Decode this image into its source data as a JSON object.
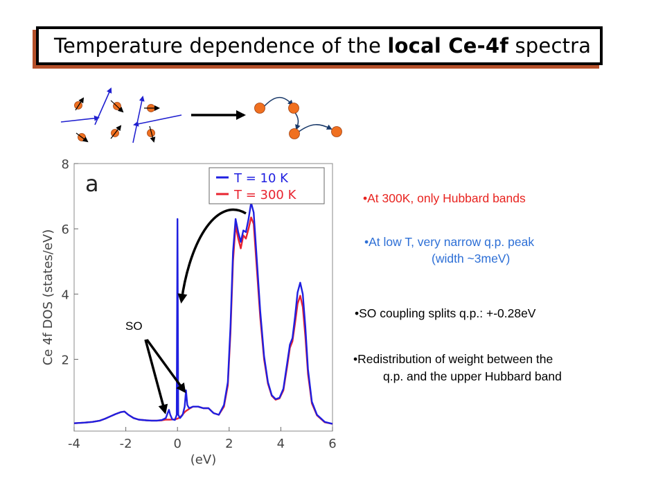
{
  "slide": {
    "title_prefix": "Temperature dependence of the ",
    "title_bold": "local Ce-4f",
    "title_suffix": " spectra",
    "bullets": [
      {
        "line1": "•At 300K, only Hubbard bands",
        "color": "#e8231f"
      },
      {
        "line1": "•At low T, very narrow q.p. peak",
        "line2": "(width ~3meV)",
        "color": "#2d6fd6"
      },
      {
        "line1": "•SO coupling splits q.p.: +-0.28eV",
        "color": "#000000"
      },
      {
        "line1": "•Redistribution of weight between the",
        "line2": "q.p. and the upper Hubbard band",
        "color": "#000000"
      }
    ]
  },
  "chart_data": {
    "type": "line",
    "panel_label": "a",
    "ylabel": "Ce 4f DOS (states/eV)",
    "xlabel": "(eV)",
    "xlim": [
      -4,
      6
    ],
    "ylim": [
      -0.2,
      8
    ],
    "xticks": [
      "-4",
      "-2",
      "0",
      "2",
      "4",
      "6"
    ],
    "yticks": [
      "2",
      "4",
      "6",
      "8"
    ],
    "annotation": "SO",
    "legend_position": "top-right",
    "series": [
      {
        "name": "T = 10 K",
        "color": "#1f1fe0",
        "x": [
          -4.0,
          -3.6,
          -3.3,
          -3.0,
          -2.8,
          -2.6,
          -2.4,
          -2.2,
          -2.05,
          -1.9,
          -1.7,
          -1.5,
          -1.2,
          -1.0,
          -0.8,
          -0.6,
          -0.45,
          -0.38,
          -0.33,
          -0.28,
          -0.2,
          -0.1,
          -0.03,
          0.0,
          0.03,
          0.1,
          0.2,
          0.28,
          0.33,
          0.38,
          0.45,
          0.6,
          0.8,
          1.0,
          1.2,
          1.4,
          1.6,
          1.8,
          1.95,
          2.05,
          2.15,
          2.25,
          2.35,
          2.45,
          2.55,
          2.65,
          2.75,
          2.85,
          2.95,
          3.05,
          3.2,
          3.35,
          3.5,
          3.65,
          3.8,
          3.95,
          4.1,
          4.25,
          4.35,
          4.45,
          4.55,
          4.65,
          4.75,
          4.85,
          4.95,
          5.05,
          5.2,
          5.4,
          5.7,
          6.0
        ],
        "y": [
          0.04,
          0.06,
          0.08,
          0.12,
          0.18,
          0.25,
          0.32,
          0.38,
          0.4,
          0.3,
          0.2,
          0.15,
          0.13,
          0.12,
          0.12,
          0.14,
          0.2,
          0.35,
          0.45,
          0.3,
          0.16,
          0.14,
          0.3,
          6.3,
          0.3,
          0.2,
          0.3,
          0.55,
          1.05,
          0.6,
          0.5,
          0.55,
          0.55,
          0.5,
          0.5,
          0.35,
          0.3,
          0.6,
          1.3,
          3.0,
          5.3,
          6.3,
          5.9,
          5.6,
          5.95,
          5.9,
          6.3,
          6.8,
          6.5,
          5.3,
          3.5,
          2.1,
          1.3,
          0.9,
          0.78,
          0.82,
          1.1,
          1.9,
          2.45,
          2.65,
          3.3,
          4.05,
          4.35,
          4.0,
          3.0,
          1.7,
          0.7,
          0.3,
          0.08,
          0.02
        ]
      },
      {
        "name": "T = 300 K",
        "color": "#e8232f",
        "x": [
          -4.0,
          -3.6,
          -3.3,
          -3.0,
          -2.8,
          -2.6,
          -2.4,
          -2.2,
          -2.05,
          -1.9,
          -1.7,
          -1.5,
          -1.2,
          -1.0,
          -0.8,
          -0.6,
          -0.45,
          -0.3,
          -0.1,
          0.0,
          0.1,
          0.3,
          0.45,
          0.6,
          0.8,
          1.0,
          1.2,
          1.4,
          1.6,
          1.8,
          1.95,
          2.05,
          2.15,
          2.25,
          2.35,
          2.45,
          2.55,
          2.65,
          2.75,
          2.85,
          2.95,
          3.05,
          3.2,
          3.35,
          3.5,
          3.65,
          3.8,
          3.95,
          4.1,
          4.25,
          4.35,
          4.45,
          4.55,
          4.65,
          4.75,
          4.85,
          4.95,
          5.05,
          5.2,
          5.4,
          5.7,
          6.0
        ],
        "y": [
          0.04,
          0.06,
          0.08,
          0.12,
          0.18,
          0.25,
          0.32,
          0.38,
          0.4,
          0.3,
          0.2,
          0.15,
          0.13,
          0.12,
          0.12,
          0.13,
          0.15,
          0.15,
          0.16,
          0.18,
          0.22,
          0.4,
          0.48,
          0.55,
          0.55,
          0.5,
          0.5,
          0.35,
          0.3,
          0.55,
          1.2,
          2.8,
          5.0,
          6.1,
          5.7,
          5.4,
          5.8,
          5.7,
          6.0,
          6.35,
          6.15,
          5.0,
          3.3,
          2.0,
          1.25,
          0.88,
          0.76,
          0.8,
          1.05,
          1.8,
          2.35,
          2.55,
          3.1,
          3.7,
          3.95,
          3.6,
          2.7,
          1.55,
          0.65,
          0.28,
          0.07,
          0.02
        ]
      }
    ]
  }
}
